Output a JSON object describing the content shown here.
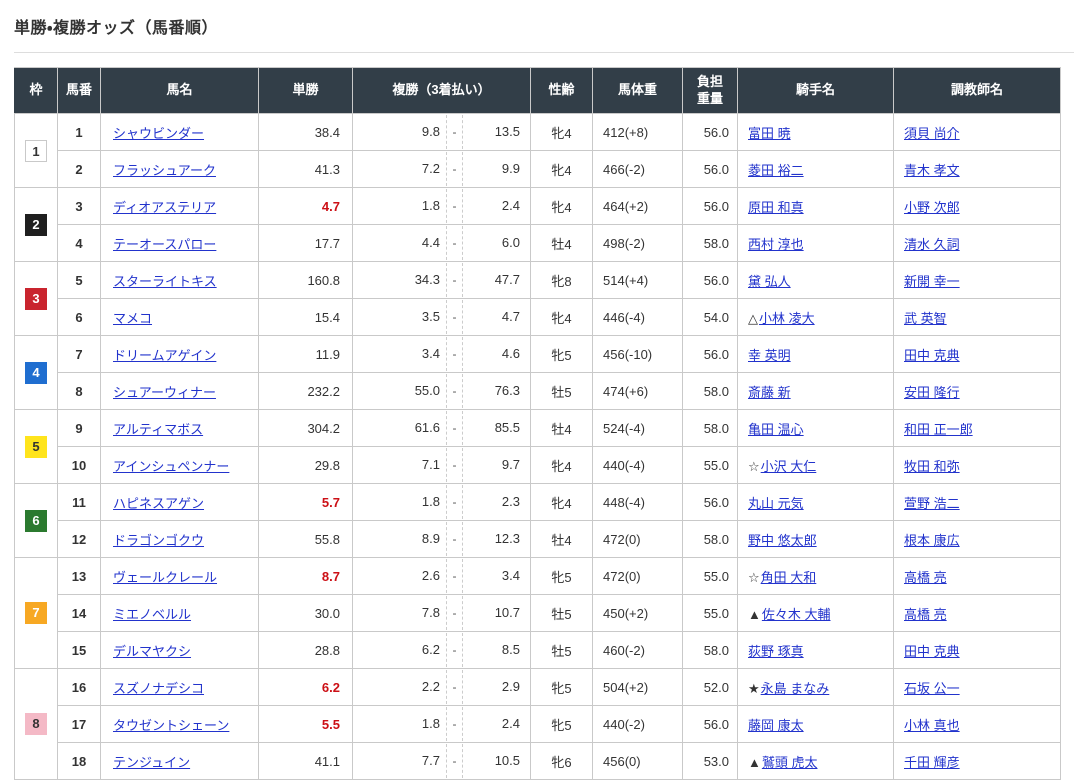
{
  "page_title": "単勝・複勝オッズ（馬番順）",
  "colors": {
    "header_bg": "#323e48",
    "link": "#2233cc",
    "hot_odds": "#cc1016",
    "row_border": "#cccccc"
  },
  "frame_colors": {
    "1": {
      "bg": "#ffffff",
      "fg": "#333333",
      "border": "#c9c9c9"
    },
    "2": {
      "bg": "#1f1f1f",
      "fg": "#ffffff"
    },
    "3": {
      "bg": "#c9242e",
      "fg": "#ffffff"
    },
    "4": {
      "bg": "#1f6ed0",
      "fg": "#ffffff"
    },
    "5": {
      "bg": "#ffe41c",
      "fg": "#333333"
    },
    "6": {
      "bg": "#2b7a2f",
      "fg": "#ffffff"
    },
    "7": {
      "bg": "#f7a823",
      "fg": "#ffffff"
    },
    "8": {
      "bg": "#f4b9c6",
      "fg": "#333333"
    }
  },
  "table": {
    "headers": [
      "枠",
      "馬番",
      "馬名",
      "単勝",
      "複勝（3着払い）",
      "性齢",
      "馬体重",
      "負担\n重量",
      "騎手名",
      "調教師名"
    ],
    "place_separator": "-",
    "rows": [
      {
        "frame": 1,
        "frame_span": 2,
        "num": "1",
        "name": "シャウビンダー",
        "win": "38.4",
        "win_hot": false,
        "place_low": "9.8",
        "place_high": "13.5",
        "sex_age": "牝4",
        "weight": "412(+8)",
        "load": "56.0",
        "mark": "",
        "jockey": "富田 暁",
        "trainer": "須貝 尚介"
      },
      {
        "frame": null,
        "num": "2",
        "name": "フラッシュアーク",
        "win": "41.3",
        "win_hot": false,
        "place_low": "7.2",
        "place_high": "9.9",
        "sex_age": "牝4",
        "weight": "466(-2)",
        "load": "56.0",
        "mark": "",
        "jockey": "菱田 裕二",
        "trainer": "青木 孝文"
      },
      {
        "frame": 2,
        "frame_span": 2,
        "num": "3",
        "name": "ディオアステリア",
        "win": "4.7",
        "win_hot": true,
        "place_low": "1.8",
        "place_high": "2.4",
        "sex_age": "牝4",
        "weight": "464(+2)",
        "load": "56.0",
        "mark": "",
        "jockey": "原田 和真",
        "trainer": "小野 次郎"
      },
      {
        "frame": null,
        "num": "4",
        "name": "テーオースパロー",
        "win": "17.7",
        "win_hot": false,
        "place_low": "4.4",
        "place_high": "6.0",
        "sex_age": "牡4",
        "weight": "498(-2)",
        "load": "58.0",
        "mark": "",
        "jockey": "西村 淳也",
        "trainer": "清水 久詞"
      },
      {
        "frame": 3,
        "frame_span": 2,
        "num": "5",
        "name": "スターライトキス",
        "win": "160.8",
        "win_hot": false,
        "place_low": "34.3",
        "place_high": "47.7",
        "sex_age": "牝8",
        "weight": "514(+4)",
        "load": "56.0",
        "mark": "",
        "jockey": "黛 弘人",
        "trainer": "新開 幸一"
      },
      {
        "frame": null,
        "num": "6",
        "name": "マメコ",
        "win": "15.4",
        "win_hot": false,
        "place_low": "3.5",
        "place_high": "4.7",
        "sex_age": "牝4",
        "weight": "446(-4)",
        "load": "54.0",
        "mark": "△",
        "jockey": "小林 凌大",
        "trainer": "武 英智"
      },
      {
        "frame": 4,
        "frame_span": 2,
        "num": "7",
        "name": "ドリームアゲイン",
        "win": "11.9",
        "win_hot": false,
        "place_low": "3.4",
        "place_high": "4.6",
        "sex_age": "牝5",
        "weight": "456(-10)",
        "load": "56.0",
        "mark": "",
        "jockey": "幸 英明",
        "trainer": "田中 克典"
      },
      {
        "frame": null,
        "num": "8",
        "name": "シュアーウィナー",
        "win": "232.2",
        "win_hot": false,
        "place_low": "55.0",
        "place_high": "76.3",
        "sex_age": "牡5",
        "weight": "474(+6)",
        "load": "58.0",
        "mark": "",
        "jockey": "斎藤 新",
        "trainer": "安田 隆行"
      },
      {
        "frame": 5,
        "frame_span": 2,
        "num": "9",
        "name": "アルティマボス",
        "win": "304.2",
        "win_hot": false,
        "place_low": "61.6",
        "place_high": "85.5",
        "sex_age": "牡4",
        "weight": "524(-4)",
        "load": "58.0",
        "mark": "",
        "jockey": "亀田 温心",
        "trainer": "和田 正一郎"
      },
      {
        "frame": null,
        "num": "10",
        "name": "アインシュペンナー",
        "win": "29.8",
        "win_hot": false,
        "place_low": "7.1",
        "place_high": "9.7",
        "sex_age": "牝4",
        "weight": "440(-4)",
        "load": "55.0",
        "mark": "☆",
        "jockey": "小沢 大仁",
        "trainer": "牧田 和弥"
      },
      {
        "frame": 6,
        "frame_span": 2,
        "num": "11",
        "name": "ハピネスアゲン",
        "win": "5.7",
        "win_hot": true,
        "place_low": "1.8",
        "place_high": "2.3",
        "sex_age": "牝4",
        "weight": "448(-4)",
        "load": "56.0",
        "mark": "",
        "jockey": "丸山 元気",
        "trainer": "萱野 浩二"
      },
      {
        "frame": null,
        "num": "12",
        "name": "ドラゴンゴクウ",
        "win": "55.8",
        "win_hot": false,
        "place_low": "8.9",
        "place_high": "12.3",
        "sex_age": "牡4",
        "weight": "472(0)",
        "load": "58.0",
        "mark": "",
        "jockey": "野中 悠太郎",
        "trainer": "根本 康広"
      },
      {
        "frame": 7,
        "frame_span": 3,
        "num": "13",
        "name": "ヴェールクレール",
        "win": "8.7",
        "win_hot": true,
        "place_low": "2.6",
        "place_high": "3.4",
        "sex_age": "牝5",
        "weight": "472(0)",
        "load": "55.0",
        "mark": "☆",
        "jockey": "角田 大和",
        "trainer": "高橋 亮"
      },
      {
        "frame": null,
        "num": "14",
        "name": "ミエノベルル",
        "win": "30.0",
        "win_hot": false,
        "place_low": "7.8",
        "place_high": "10.7",
        "sex_age": "牡5",
        "weight": "450(+2)",
        "load": "55.0",
        "mark": "▲",
        "jockey": "佐々木 大輔",
        "trainer": "高橋 亮"
      },
      {
        "frame": null,
        "num": "15",
        "name": "デルマヤクシ",
        "win": "28.8",
        "win_hot": false,
        "place_low": "6.2",
        "place_high": "8.5",
        "sex_age": "牡5",
        "weight": "460(-2)",
        "load": "58.0",
        "mark": "",
        "jockey": "荻野 琢真",
        "trainer": "田中 克典"
      },
      {
        "frame": 8,
        "frame_span": 3,
        "num": "16",
        "name": "スズノナデシコ",
        "win": "6.2",
        "win_hot": true,
        "place_low": "2.2",
        "place_high": "2.9",
        "sex_age": "牝5",
        "weight": "504(+2)",
        "load": "52.0",
        "mark": "★",
        "jockey": "永島 まなみ",
        "trainer": "石坂 公一"
      },
      {
        "frame": null,
        "num": "17",
        "name": "タウゼントシェーン",
        "win": "5.5",
        "win_hot": true,
        "place_low": "1.8",
        "place_high": "2.4",
        "sex_age": "牝5",
        "weight": "440(-2)",
        "load": "56.0",
        "mark": "",
        "jockey": "藤岡 康太",
        "trainer": "小林 真也"
      },
      {
        "frame": null,
        "num": "18",
        "name": "テンジュイン",
        "win": "41.1",
        "win_hot": false,
        "place_low": "7.7",
        "place_high": "10.5",
        "sex_age": "牝6",
        "weight": "456(0)",
        "load": "53.0",
        "mark": "▲",
        "jockey": "鷲頭 虎太",
        "trainer": "千田 輝彦"
      }
    ]
  }
}
